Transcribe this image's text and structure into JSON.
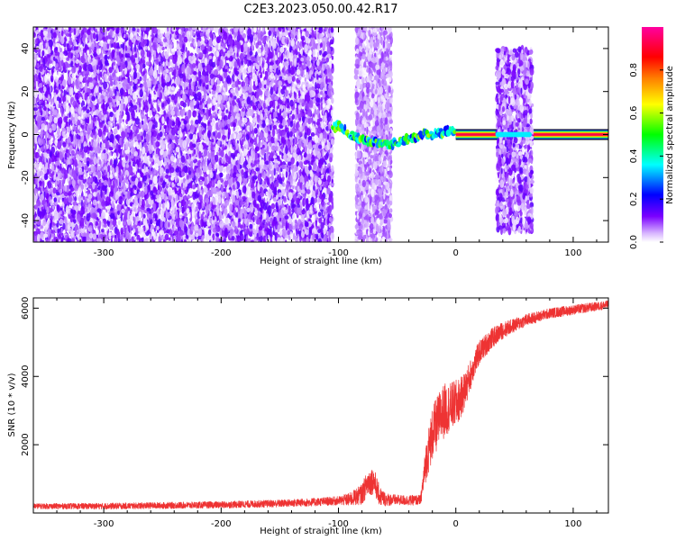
{
  "title": "C2E3.2023.050.00.42.R17",
  "chart_data": [
    {
      "type": "heatmap",
      "xlabel": "Height of straight line (km)",
      "ylabel": "Frequency (Hz)",
      "xlim": [
        -360,
        130
      ],
      "ylim": [
        -50,
        50
      ],
      "xticks": [
        -300,
        -200,
        -100,
        0,
        100
      ],
      "yticks": [
        -40,
        -20,
        0,
        20,
        40
      ],
      "colorbar": {
        "label": "Normalized spectral amplitude",
        "range": [
          0,
          1
        ],
        "ticks": [
          0.0,
          0.2,
          0.4,
          0.6,
          0.8
        ],
        "tick_labels": [
          "0.0",
          "0.2",
          "0.4",
          "0.6",
          "0.8"
        ],
        "colormap": "hsv-like (violet → blue → cyan → green → yellow → orange → red → magenta)"
      },
      "grid": false,
      "regions": [
        {
          "description": "diffuse noise",
          "x": [
            -360,
            -105
          ],
          "f": [
            -50,
            50
          ],
          "amplitude": [
            0.0,
            0.15
          ]
        },
        {
          "description": "sparse noise",
          "x": [
            -85,
            -55
          ],
          "f": [
            -50,
            50
          ],
          "amplitude": [
            0.0,
            0.1
          ]
        },
        {
          "description": "wandering signal line",
          "x": [
            -105,
            0
          ],
          "f": [
            -5,
            5
          ],
          "amplitude": [
            0.2,
            0.6
          ]
        },
        {
          "description": "strong carrier line",
          "x": [
            0,
            130
          ],
          "f": [
            0,
            0
          ],
          "amplitude": [
            0.9,
            1.0
          ]
        },
        {
          "description": "noise block",
          "x": [
            35,
            65
          ],
          "f": [
            -45,
            40
          ],
          "amplitude": [
            0.0,
            0.15
          ]
        }
      ],
      "signal_path": {
        "x": [
          -105,
          -100,
          -95,
          -90,
          -85,
          -80,
          -75,
          -70,
          -65,
          -60,
          -55,
          -50,
          -45,
          -40,
          -35,
          -30,
          -20,
          -10,
          -5,
          0
        ],
        "f": [
          3,
          4,
          2,
          0,
          -1,
          -2,
          -3,
          -3,
          -4,
          -4,
          -5,
          -4,
          -3,
          -2,
          -1,
          0,
          0,
          1,
          2,
          0
        ]
      }
    },
    {
      "type": "line",
      "xlabel": "Height of straight line (km)",
      "ylabel": "SNR (10 * v/v)",
      "xlim": [
        -360,
        130
      ],
      "ylim": [
        0,
        6300
      ],
      "xticks": [
        -300,
        -200,
        -100,
        0,
        100
      ],
      "yticks": [
        2000,
        4000,
        6000
      ],
      "color": "#ee3333",
      "grid": false,
      "series": [
        {
          "x": [
            -360,
            -300,
            -200,
            -150,
            -120,
            -100,
            -90,
            -80,
            -75,
            -70,
            -65,
            -60,
            -50,
            -40,
            -30,
            -25,
            -20,
            -15,
            -10,
            -5,
            0,
            5,
            10,
            15,
            20,
            30,
            40,
            50,
            60,
            70,
            80,
            90,
            100,
            110,
            120,
            130
          ],
          "values": [
            200,
            200,
            240,
            280,
            320,
            360,
            400,
            550,
            900,
            950,
            500,
            400,
            380,
            370,
            380,
            1600,
            2300,
            2700,
            3000,
            3100,
            3200,
            3400,
            3800,
            4300,
            4700,
            5100,
            5350,
            5500,
            5650,
            5750,
            5850,
            5900,
            5950,
            6000,
            6050,
            6100
          ],
          "noise": [
            80,
            90,
            100,
            110,
            120,
            130,
            200,
            300,
            400,
            400,
            300,
            200,
            150,
            150,
            150,
            600,
            800,
            800,
            800,
            700,
            700,
            600,
            500,
            400,
            350,
            300,
            250,
            200,
            180,
            160,
            150,
            150,
            140,
            140,
            130,
            130
          ]
        }
      ]
    }
  ]
}
